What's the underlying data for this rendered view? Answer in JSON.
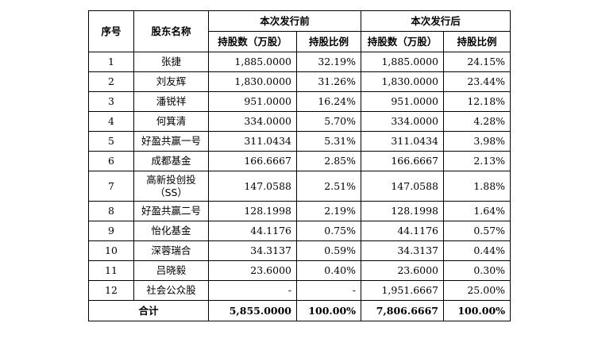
{
  "table": {
    "header": {
      "seq": "序号",
      "name": "股东名称",
      "before_group": "本次发行前",
      "after_group": "本次发行后",
      "before_shares": "持股数（万股）",
      "before_ratio": "持股比例",
      "after_shares": "持股数（万股）",
      "after_ratio": "持股比例"
    },
    "rows": [
      {
        "seq": "1",
        "name": "张捷",
        "name2": "",
        "before_shares": "1,885.0000",
        "before_ratio": "32.19%",
        "after_shares": "1,885.0000",
        "after_ratio": "24.15%"
      },
      {
        "seq": "2",
        "name": "刘友辉",
        "name2": "",
        "before_shares": "1,830.0000",
        "before_ratio": "31.26%",
        "after_shares": "1,830.0000",
        "after_ratio": "23.44%"
      },
      {
        "seq": "3",
        "name": "潘锐祥",
        "name2": "",
        "before_shares": "951.0000",
        "before_ratio": "16.24%",
        "after_shares": "951.0000",
        "after_ratio": "12.18%"
      },
      {
        "seq": "4",
        "name": "何箕清",
        "name2": "",
        "before_shares": "334.0000",
        "before_ratio": "5.70%",
        "after_shares": "334.0000",
        "after_ratio": "4.28%"
      },
      {
        "seq": "5",
        "name": "好盈共赢一号",
        "name2": "",
        "before_shares": "311.0434",
        "before_ratio": "5.31%",
        "after_shares": "311.0434",
        "after_ratio": "3.98%"
      },
      {
        "seq": "6",
        "name": "成都基金",
        "name2": "",
        "before_shares": "166.6667",
        "before_ratio": "2.85%",
        "after_shares": "166.6667",
        "after_ratio": "2.13%"
      },
      {
        "seq": "7",
        "name": "高新投创投",
        "name2": "（SS）",
        "before_shares": "147.0588",
        "before_ratio": "2.51%",
        "after_shares": "147.0588",
        "after_ratio": "1.88%"
      },
      {
        "seq": "8",
        "name": "好盈共赢二号",
        "name2": "",
        "before_shares": "128.1998",
        "before_ratio": "2.19%",
        "after_shares": "128.1998",
        "after_ratio": "1.64%"
      },
      {
        "seq": "9",
        "name": "怡化基金",
        "name2": "",
        "before_shares": "44.1176",
        "before_ratio": "0.75%",
        "after_shares": "44.1176",
        "after_ratio": "0.57%"
      },
      {
        "seq": "10",
        "name": "深蓉瑞合",
        "name2": "",
        "before_shares": "34.3137",
        "before_ratio": "0.59%",
        "after_shares": "34.3137",
        "after_ratio": "0.44%"
      },
      {
        "seq": "11",
        "name": "吕晓毅",
        "name2": "",
        "before_shares": "23.6000",
        "before_ratio": "0.40%",
        "after_shares": "23.6000",
        "after_ratio": "0.30%"
      },
      {
        "seq": "12",
        "name": "社会公众股",
        "name2": "",
        "before_shares": "-",
        "before_ratio": "-",
        "after_shares": "1,951.6667",
        "after_ratio": "25.00%"
      }
    ],
    "total": {
      "label": "合计",
      "before_shares": "5,855.0000",
      "before_ratio": "100.00%",
      "after_shares": "7,806.6667",
      "after_ratio": "100.00%"
    }
  }
}
